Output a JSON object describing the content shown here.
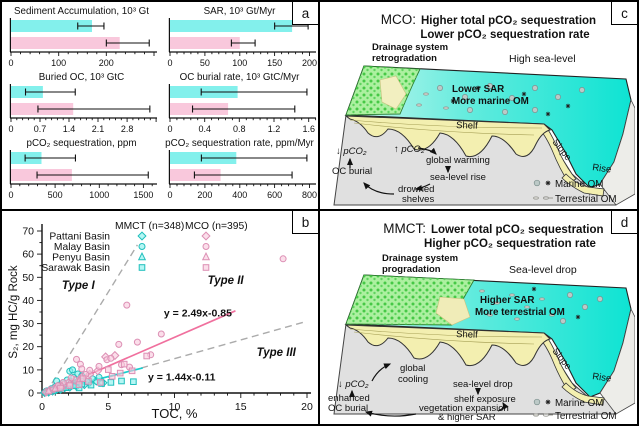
{
  "colors": {
    "mmct": "#83F0EC",
    "mco": "#F9C8DC",
    "mmct_stroke": "#1FBFBC",
    "mco_stroke": "#DC8FB4",
    "mmct_line": "#17CFCF",
    "mco_line": "#F0709E",
    "dashed_gray": "#ABABAB",
    "zone_label_gray": "#9C9C9C",
    "sea_deep": "#0EE3D3",
    "sea_shallow": "#C6F6EE",
    "land_green": "#ACF0A0",
    "land_dot_green": "#46C846",
    "shelf_yellow": "#F3EFB0",
    "block_gray": "#E0E0E0"
  },
  "panels": {
    "a": {
      "letter": "a"
    },
    "b": {
      "letter": "b"
    },
    "c": {
      "letter": "c",
      "title_prefix": "MCO:",
      "title_line1": "Higher total pCO₂ sequestration",
      "title_line2": "Lower pCO₂ sequestration rate",
      "labels": {
        "drainage_1": "Drainage system",
        "drainage_2": "retrogradation",
        "sea_level": "High sea-level",
        "om_1": "Lower SAR",
        "om_2": "More marine OM",
        "shelf": "Shelf",
        "slope": "Slope",
        "rise": "Rise",
        "pco2_down": "↓ pCO₂",
        "oc_burial": "OC burial",
        "pco2_up": "↑ pCO₂",
        "step_1": "global warming",
        "step_2": "sea-level rise",
        "step_3a": "drowned",
        "step_3b": "shelves",
        "legend_marine": "Marine OM",
        "legend_terrestrial": "Terrestrial OM"
      }
    },
    "d": {
      "letter": "d",
      "title_prefix": "MMCT:",
      "title_line1": "Lower total pCO₂ sequestration",
      "title_line2": "Higher pCO₂ sequestration rate",
      "labels": {
        "drainage_1": "Drainage system",
        "drainage_2": "progradation",
        "sea_level": "Sea-level drop",
        "om_1": "Higher SAR",
        "om_2": "More terrestrial OM",
        "shelf": "Shelf",
        "slope": "Slope",
        "rise": "Rise",
        "pco2_down": "↓ pCO₂",
        "oc_burial_1": "enhanced",
        "oc_burial_2": "OC burial",
        "step_1a": "global",
        "step_1b": "cooling",
        "step_2": "sea-level drop",
        "step_3": "shelf exposure",
        "step_4a": "vegetation expansion",
        "step_4b": "& higher SAR",
        "legend_marine": "Marine OM",
        "legend_terrestrial": "Terrestrial OM"
      }
    }
  },
  "chart_data": [
    {
      "type": "bar",
      "orientation": "horizontal",
      "title": "Sediment Accumulation, 10³ Gt",
      "xticks": [
        0,
        100,
        200
      ],
      "xlim": [
        0,
        300
      ],
      "series": [
        {
          "name": "MMCT",
          "value": 170,
          "error": [
            140,
            195
          ]
        },
        {
          "name": "MCO",
          "value": 228,
          "error": [
            200,
            290
          ]
        }
      ]
    },
    {
      "type": "bar",
      "orientation": "horizontal",
      "title": "SAR, 10³ Gt/Myr",
      "xticks": [
        0,
        50,
        100,
        150,
        200
      ],
      "xlim": [
        0,
        205
      ],
      "series": [
        {
          "name": "MMCT",
          "value": 175,
          "error": [
            150,
            198
          ]
        },
        {
          "name": "MCO",
          "value": 100,
          "error": [
            88,
            122
          ]
        }
      ]
    },
    {
      "type": "bar",
      "orientation": "horizontal",
      "title": "Buried OC, 10³ GtC",
      "xticks": [
        0,
        0.7,
        1.4,
        2.1,
        2.8
      ],
      "xlim": [
        0,
        3.45
      ],
      "series": [
        {
          "name": "MMCT",
          "value": 0.77,
          "error": [
            0.35,
            1.55
          ]
        },
        {
          "name": "MCO",
          "value": 1.5,
          "error": [
            0.65,
            3.35
          ]
        }
      ]
    },
    {
      "type": "bar",
      "orientation": "horizontal",
      "title": "OC burial rate, 10³ GtC/Myr",
      "xticks": [
        0,
        0.4,
        0.8,
        1.2,
        1.6
      ],
      "xlim": [
        0,
        1.65
      ],
      "series": [
        {
          "name": "MMCT",
          "value": 0.78,
          "error": [
            0.36,
            1.58
          ]
        },
        {
          "name": "MCO",
          "value": 0.67,
          "error": [
            0.26,
            1.44
          ]
        }
      ]
    },
    {
      "type": "bar",
      "orientation": "horizontal",
      "title": "pCO₂ sequestration, ppm",
      "xticks": [
        0,
        500,
        1000,
        1500
      ],
      "xlim": [
        0,
        1620
      ],
      "series": [
        {
          "name": "MMCT",
          "value": 345,
          "error": [
            160,
            730
          ]
        },
        {
          "name": "MCO",
          "value": 690,
          "error": [
            295,
            1555
          ]
        }
      ]
    },
    {
      "type": "bar",
      "orientation": "horizontal",
      "title": "pCO₂ sequestration rate, ppm/Myr",
      "xticks": [
        0,
        200,
        400,
        600,
        800
      ],
      "xlim": [
        0,
        820
      ],
      "series": [
        {
          "name": "MMCT",
          "value": 380,
          "error": [
            180,
            785
          ]
        },
        {
          "name": "MCO",
          "value": 290,
          "error": [
            140,
            700
          ]
        }
      ]
    },
    {
      "type": "scatter",
      "xlabel": "TOC, %",
      "ylabel": "S₂, mg HC/g Rock",
      "xlim": [
        0,
        20
      ],
      "ylim": [
        0,
        70
      ],
      "xticks": [
        0,
        5,
        10,
        15,
        20
      ],
      "yticks": [
        0,
        10,
        20,
        30,
        40,
        50,
        60,
        70
      ],
      "legend": {
        "col1": "MMCT (n=348)",
        "col2": "MCO (n=395)",
        "rows": [
          {
            "label": "Pattani Basin",
            "marker": "diamond"
          },
          {
            "label": "Malay Basin",
            "marker": "circle"
          },
          {
            "label": "Penyu Basin",
            "marker": "triangle"
          },
          {
            "label": "Sarawak Basin",
            "marker": "square"
          }
        ]
      },
      "lines": [
        {
          "label": "y = 2.49x-0.85",
          "slope": 2.49,
          "intercept": -0.85,
          "x_range": [
            0.5,
            14.6
          ],
          "color": "pink"
        },
        {
          "label": "y = 1.44x-0.11",
          "slope": 1.44,
          "intercept": -0.11,
          "x_range": [
            0.2,
            7.6
          ],
          "color": "cyan"
        }
      ],
      "boundaries": [
        {
          "name": "type1-type2",
          "pts": [
            [
              0.3,
              0
            ],
            [
              7.2,
              64
            ]
          ]
        },
        {
          "name": "type2-type3",
          "pts": [
            [
              0.8,
              0
            ],
            [
              20,
              31
            ]
          ]
        }
      ],
      "zone_labels": [
        {
          "text": "Type I",
          "x": 1.5,
          "y": 45
        },
        {
          "text": "Type II",
          "x": 12.5,
          "y": 47
        },
        {
          "text": "Type III",
          "x": 16.2,
          "y": 16
        }
      ],
      "eq_labels": [
        {
          "text": "y = 2.49x-0.85",
          "x": 9.2,
          "y": 33,
          "color": "pink"
        },
        {
          "text": "y = 1.44x-0.11",
          "x": 8.0,
          "y": 5.4,
          "color": "cyan"
        }
      ],
      "series": [
        {
          "basin": "Pattani Basin",
          "group": "MMCT",
          "marker": "diamond",
          "points": [
            [
              0.2,
              0.2
            ],
            [
              0.3,
              0.5
            ],
            [
              0.5,
              0.4
            ],
            [
              0.6,
              1.0
            ],
            [
              0.8,
              0.8
            ],
            [
              0.9,
              1.5
            ],
            [
              1.0,
              1.2
            ],
            [
              1.2,
              2.0
            ],
            [
              1.4,
              1.6
            ],
            [
              1.5,
              2.6
            ],
            [
              1.7,
              2.2
            ],
            [
              1.9,
              3.0
            ],
            [
              2.1,
              2.5
            ],
            [
              2.3,
              3.6
            ],
            [
              2.6,
              3.0
            ],
            [
              2.9,
              4.2
            ],
            [
              3.2,
              3.6
            ],
            [
              3.6,
              4.6
            ],
            [
              4.1,
              5.2
            ],
            [
              4.6,
              4.4
            ]
          ]
        },
        {
          "basin": "Malay Basin",
          "group": "MMCT",
          "marker": "circle",
          "points": [
            [
              0.4,
              0.9
            ],
            [
              0.7,
              1.8
            ],
            [
              1.0,
              2.8
            ],
            [
              1.1,
              5.2
            ],
            [
              1.3,
              3.4
            ],
            [
              1.6,
              4.4
            ],
            [
              1.9,
              5.6
            ],
            [
              2.1,
              9.4
            ],
            [
              2.3,
              10.0
            ],
            [
              2.4,
              6.8
            ],
            [
              2.7,
              8.2
            ],
            [
              3.0,
              7.4
            ],
            [
              3.4,
              4.8
            ],
            [
              3.8,
              6.2
            ],
            [
              4.3,
              6.8
            ]
          ]
        },
        {
          "basin": "Penyu Basin",
          "group": "MMCT",
          "marker": "triangle",
          "points": [
            [
              0.3,
              0.3
            ],
            [
              0.6,
              0.9
            ],
            [
              0.9,
              1.4
            ],
            [
              1.2,
              1.8
            ],
            [
              1.6,
              2.4
            ],
            [
              2.0,
              2.9
            ],
            [
              2.5,
              3.4
            ]
          ]
        },
        {
          "basin": "Sarawak Basin",
          "group": "MMCT",
          "marker": "square",
          "points": [
            [
              0.5,
              0.6
            ],
            [
              0.9,
              1.1
            ],
            [
              1.3,
              1.7
            ],
            [
              1.8,
              2.3
            ],
            [
              2.4,
              3.1
            ],
            [
              2.8,
              2.2
            ],
            [
              3.0,
              3.9
            ],
            [
              3.7,
              3.4
            ],
            [
              4.5,
              4.1
            ],
            [
              5.2,
              4.6
            ],
            [
              6.0,
              5.2
            ],
            [
              6.9,
              4.9
            ]
          ]
        },
        {
          "basin": "Pattani Basin",
          "group": "MCO",
          "marker": "diamond",
          "points": [
            [
              0.3,
              0.4
            ],
            [
              0.6,
              1.1
            ],
            [
              0.9,
              1.8
            ],
            [
              1.2,
              2.6
            ],
            [
              1.6,
              3.5
            ],
            [
              2.0,
              4.4
            ],
            [
              2.5,
              5.5
            ],
            [
              3.0,
              6.8
            ],
            [
              3.6,
              8.1
            ],
            [
              4.2,
              9.6
            ],
            [
              4.8,
              15.6
            ],
            [
              5.5,
              16.2
            ]
          ]
        },
        {
          "basin": "Malay Basin",
          "group": "MCO",
          "marker": "circle",
          "points": [
            [
              1.2,
              3.2
            ],
            [
              1.6,
              4.6
            ],
            [
              2.2,
              6.5
            ],
            [
              2.6,
              14.5
            ],
            [
              2.9,
              12.4
            ],
            [
              3.0,
              10.4
            ],
            [
              3.3,
              8.0
            ],
            [
              3.6,
              9.8
            ],
            [
              4.3,
              11.5
            ],
            [
              4.9,
              14.4
            ],
            [
              5.2,
              15.0
            ],
            [
              5.8,
              21.0
            ],
            [
              6.0,
              12.2
            ],
            [
              6.4,
              38.0
            ],
            [
              6.6,
              11.2
            ],
            [
              7.2,
              22.0
            ],
            [
              8.2,
              16.5
            ],
            [
              9.0,
              25.5
            ],
            [
              18.2,
              58.0
            ]
          ]
        },
        {
          "basin": "Penyu Basin",
          "group": "MCO",
          "marker": "triangle",
          "points": [
            [
              0.5,
              0.8
            ],
            [
              1.0,
              1.9
            ],
            [
              1.5,
              3.0
            ],
            [
              2.1,
              4.2
            ],
            [
              2.8,
              5.3
            ]
          ]
        },
        {
          "basin": "Sarawak Basin",
          "group": "MCO",
          "marker": "square",
          "points": [
            [
              1.4,
              2.1
            ],
            [
              2.1,
              3.2
            ],
            [
              2.8,
              3.6
            ],
            [
              3.1,
              6.2
            ],
            [
              3.5,
              5.0
            ],
            [
              4.4,
              4.6
            ],
            [
              5.0,
              10.1
            ],
            [
              5.3,
              7.2
            ],
            [
              5.9,
              8.6
            ],
            [
              6.2,
              12.5
            ],
            [
              6.8,
              9.6
            ],
            [
              7.9,
              16.0
            ]
          ]
        }
      ]
    }
  ]
}
